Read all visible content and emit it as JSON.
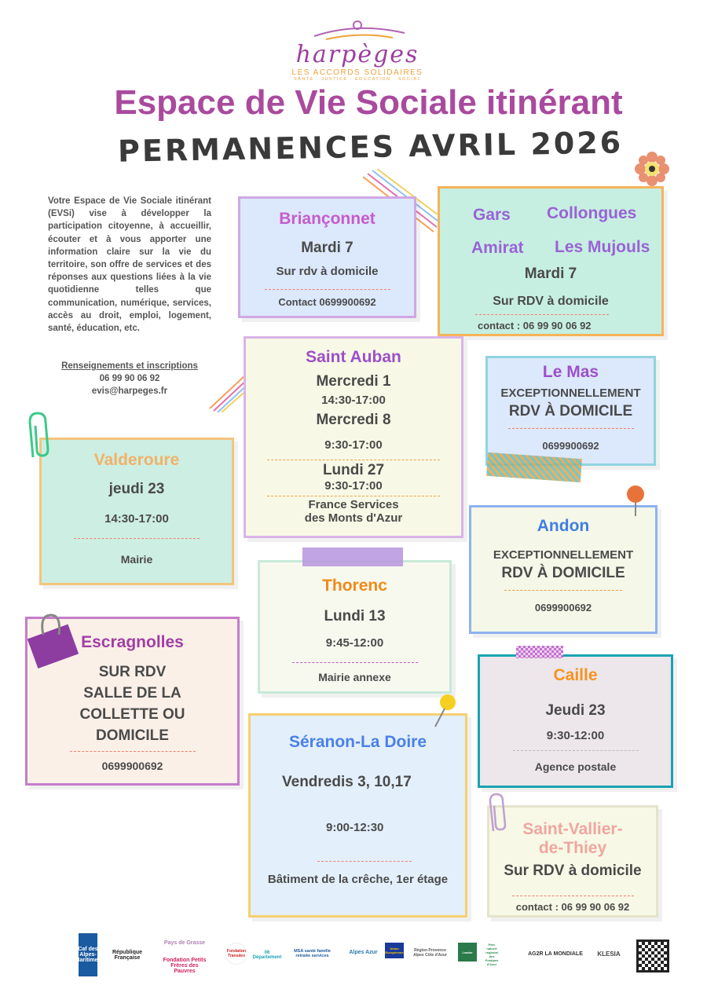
{
  "logo": {
    "name": "harpèges",
    "tagline": "LES ACCORDS SOLIDAIRES",
    "subline": "SANTÉ · JUSTICE · ÉDUCATION · SOCIAL"
  },
  "title": "Espace de Vie Sociale itinérant",
  "subtitle": "PERMANENCES AVRIL 2026",
  "intro": "Votre Espace de Vie Sociale itinérant (EVSi) vise à développer la participation citoyenne, à accueillir, écouter et à vous apporter une information claire sur la vie du territoire, son offre de services et des réponses aux questions liées à la vie quotidienne telles que communication, numérique, services, accès au droit, emploi, logement, santé, éducation, etc.",
  "contact": {
    "heading": "Renseignements et inscriptions",
    "phone": "06 99 90 06 92",
    "email": "evis@harpeges.fr"
  },
  "cards": {
    "brianconnet": {
      "title": "Briançonnet",
      "date": "Mardi 7",
      "info": "Sur rdv à domicile",
      "contact": "Contact 0699900692"
    },
    "gars": {
      "towns": [
        "Gars",
        "Collongues",
        "Amirat",
        "Les Mujouls"
      ],
      "date": "Mardi 7",
      "info": "Sur RDV à domicile",
      "contact": "contact : 06 99 90 06 92"
    },
    "saint_auban": {
      "title": "Saint Auban",
      "d1": "Mercredi 1",
      "h1": "14:30-17:00",
      "d2": "Mercredi 8",
      "h2": "9:30-17:00",
      "d3": "Lundi 27",
      "h3": "9:30-17:00",
      "place1": "France Services",
      "place2": "des Monts d'Azur"
    },
    "le_mas": {
      "title": "Le Mas",
      "l1": "EXCEPTIONNELLEMENT",
      "l2": "RDV À DOMICILE",
      "contact": "0699900692"
    },
    "valderoure": {
      "title": "Valderoure",
      "date": "jeudi 23",
      "hours": "14:30-17:00",
      "place": "Mairie"
    },
    "andon": {
      "title": "Andon",
      "l1": "EXCEPTIONNELLEMENT",
      "l2": "RDV À DOMICILE",
      "contact": "0699900692"
    },
    "thorenc": {
      "title": "Thorenc",
      "date": "Lundi 13",
      "hours": "9:45-12:00",
      "place": "Mairie annexe"
    },
    "escragnolles": {
      "title": "Escragnolles",
      "lines": [
        "SUR RDV",
        "SALLE DE LA",
        "COLLETTE OU",
        "DOMICILE"
      ],
      "contact": "0699900692"
    },
    "caille": {
      "title": "Caille",
      "date": "Jeudi 23",
      "hours": "9:30-12:00",
      "place": "Agence postale"
    },
    "seranon": {
      "title": "Séranon-La Doire",
      "date": "Vendredis 3, 10,17",
      "hours": "9:00-12:30",
      "place": "Bâtiment de la crêche, 1er étage"
    },
    "saint_vallier": {
      "title1": "Saint-Vallier-",
      "title2": "de-Thiey",
      "info": "Sur RDV à domicile",
      "contact": "contact : 06 99 90 06 92"
    }
  },
  "partners": [
    "Caf des Alpes-Maritimes",
    "République Française",
    "Pays de Grasse",
    "Fondation Petits Frères des Pauvres",
    "Fondation Transdev",
    "06 Département",
    "MSA santé famille retraite services",
    "Alpes Azur",
    "Union Européenne",
    "Région Provence Alpes Côte d'Azur",
    "Leader",
    "Parc naturel régional des Préalpes d'Azur",
    "AG2R LA MONDIALE",
    "KLESIA"
  ]
}
